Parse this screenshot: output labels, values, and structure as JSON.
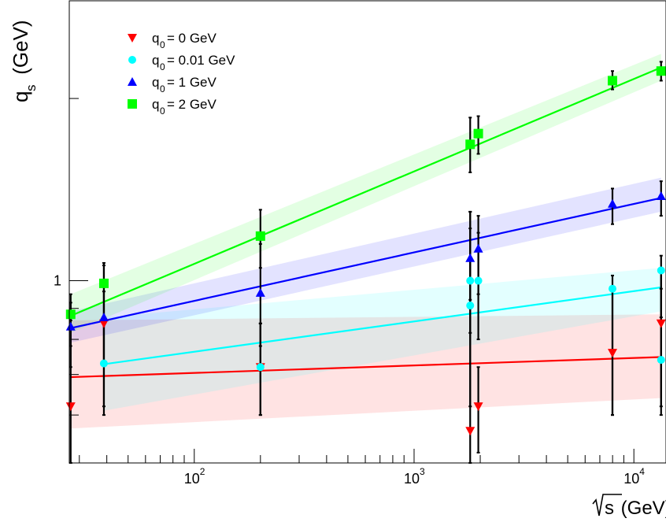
{
  "chart_data": {
    "type": "scatter",
    "x_scale": "log",
    "y_scale": "log",
    "xlim": [
      27,
      14000
    ],
    "ylim": [
      0.5,
      2.9
    ],
    "xlabel_sqrt": "s",
    "xlabel_unit": " (GeV)",
    "ylabel_main": "q",
    "ylabel_sub": "s",
    "ylabel_unit": " (GeV)",
    "x_ticks": [
      {
        "value": 100,
        "base": "10",
        "exp": "2"
      },
      {
        "value": 1000,
        "base": "10",
        "exp": "3"
      },
      {
        "value": 10000,
        "base": "10",
        "exp": "4"
      }
    ],
    "y_ticks": [
      {
        "value": 1,
        "label": "1"
      }
    ],
    "grid": false,
    "legend_position": "top-left",
    "series": [
      {
        "name_main": "q",
        "name_sub": "0",
        "name_rest": " = 0 GeV",
        "color": "#ff0000",
        "marker": "triangle-down",
        "points": [
          {
            "x": 27.4,
            "y": 0.62,
            "lo": 0.5,
            "hi": 0.86
          },
          {
            "x": 38.8,
            "y": 0.85,
            "lo": 0.62,
            "hi": 0.96
          },
          {
            "x": 200,
            "y": 0.72,
            "lo": 0.6,
            "hi": 0.85
          },
          {
            "x": 1800,
            "y": 0.565,
            "lo": 0.5,
            "hi": 0.93
          },
          {
            "x": 1960,
            "y": 0.62,
            "lo": 0.52,
            "hi": 0.72
          },
          {
            "x": 7990,
            "y": 0.76,
            "lo": 0.6,
            "hi": 0.98
          },
          {
            "x": 13300,
            "y": 0.85,
            "lo": 0.62,
            "hi": 0.97
          }
        ],
        "fit": {
          "x0": 27.4,
          "y0": 0.693,
          "x1": 13300,
          "y1": 0.748
        },
        "band": {
          "x0": 27.4,
          "lo0": 0.57,
          "hi0": 0.86,
          "x1": 13300,
          "lo1": 0.64,
          "hi1": 0.88
        }
      },
      {
        "name_main": "q",
        "name_sub": "0",
        "name_rest": " = 0.01 GeV",
        "color": "#00ffff",
        "marker": "circle",
        "points": [
          {
            "x": 38.8,
            "y": 0.73,
            "lo": 0.6,
            "hi": 0.86
          },
          {
            "x": 200,
            "y": 0.72,
            "lo": 0.6,
            "hi": 0.85
          },
          {
            "x": 1800,
            "y": 0.91,
            "lo": 0.62,
            "hi": 1.22
          },
          {
            "x": 1960,
            "y": 1.0,
            "lo": 0.8,
            "hi": 1.2
          },
          {
            "x": 1800,
            "y": 1.0,
            "lo": 0.82,
            "hi": 1.3
          },
          {
            "x": 7990,
            "y": 0.97,
            "lo": 0.6,
            "hi": 1.02
          },
          {
            "x": 13300,
            "y": 0.74,
            "lo": 0.6,
            "hi": 1.05
          },
          {
            "x": 13300,
            "y": 1.04,
            "lo": 0.87,
            "hi": 1.1
          }
        ],
        "fit": {
          "x0": 38.8,
          "y0": 0.728,
          "x1": 13300,
          "y1": 0.975
        },
        "band": {
          "x0": 38.8,
          "lo0": 0.61,
          "hi0": 0.87,
          "x1": 13300,
          "lo1": 0.89,
          "hi1": 1.05
        }
      },
      {
        "name_main": "q",
        "name_sub": "0",
        "name_rest": " = 1 GeV",
        "color": "#0000ff",
        "marker": "triangle-up",
        "points": [
          {
            "x": 27.4,
            "y": 0.84,
            "lo": 0.72,
            "hi": 0.92
          },
          {
            "x": 38.8,
            "y": 0.87,
            "lo": 0.73,
            "hi": 1.06
          },
          {
            "x": 200,
            "y": 0.955,
            "lo": 0.78,
            "hi": 1.15
          },
          {
            "x": 1800,
            "y": 1.09,
            "lo": 0.9,
            "hi": 1.3
          },
          {
            "x": 1960,
            "y": 1.13,
            "lo": 0.95,
            "hi": 1.28
          },
          {
            "x": 7990,
            "y": 1.34,
            "lo": 1.24,
            "hi": 1.42
          },
          {
            "x": 13300,
            "y": 1.38,
            "lo": 1.28,
            "hi": 1.46
          }
        ],
        "fit": {
          "x0": 27.4,
          "y0": 0.835,
          "x1": 13300,
          "y1": 1.37
        },
        "band": {
          "x0": 27.4,
          "lo0": 0.79,
          "hi0": 0.89,
          "x1": 13300,
          "lo1": 1.3,
          "hi1": 1.48
        }
      },
      {
        "name_main": "q",
        "name_sub": "0",
        "name_rest": " = 2 GeV",
        "color": "#00ff00",
        "marker": "square",
        "points": [
          {
            "x": 27.4,
            "y": 0.88,
            "lo": 0.78,
            "hi": 0.95
          },
          {
            "x": 38.8,
            "y": 0.99,
            "lo": 0.86,
            "hi": 1.07
          },
          {
            "x": 200,
            "y": 1.185,
            "lo": 1.05,
            "hi": 1.31
          },
          {
            "x": 1800,
            "y": 1.68,
            "lo": 1.51,
            "hi": 1.86
          },
          {
            "x": 1960,
            "y": 1.75,
            "lo": 1.62,
            "hi": 1.87
          },
          {
            "x": 7990,
            "y": 2.14,
            "lo": 2.07,
            "hi": 2.22
          },
          {
            "x": 13300,
            "y": 2.22,
            "lo": 2.14,
            "hi": 2.3
          }
        ],
        "fit": {
          "x0": 27.4,
          "y0": 0.875,
          "x1": 13300,
          "y1": 2.25
        },
        "band": {
          "x0": 27.4,
          "lo0": 0.82,
          "hi0": 0.95,
          "x1": 13300,
          "lo1": 2.14,
          "hi1": 2.37
        }
      }
    ]
  }
}
